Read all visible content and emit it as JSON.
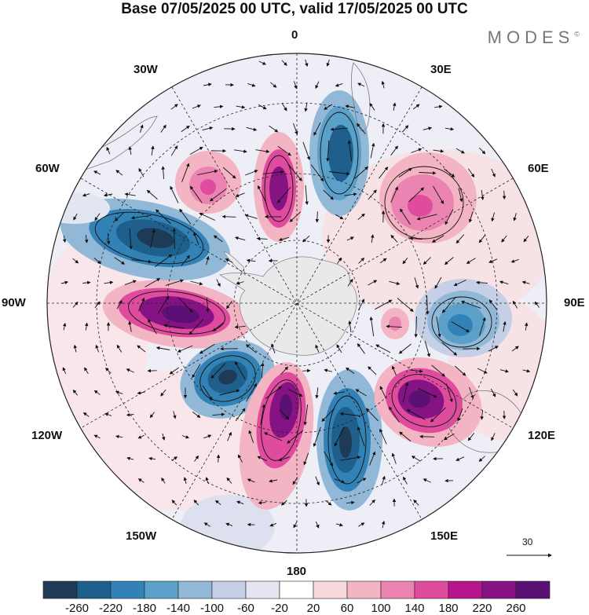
{
  "title": "Base 07/05/2025 00 UTC, valid 17/05/2025 00 UTC",
  "brand": "MODES",
  "brand_mark": "©",
  "projection": "south-polar-stereographic",
  "longitude_labels": {
    "lon_0": "0",
    "lon_30e": "30E",
    "lon_60e": "60E",
    "lon_90e": "90E",
    "lon_120e": "120E",
    "lon_150e": "150E",
    "lon_180": "180",
    "lon_150w": "150W",
    "lon_120w": "120W",
    "lon_90w": "90W",
    "lon_60w": "60W",
    "lon_30w": "30W"
  },
  "vector_reference": {
    "label": "30"
  },
  "colorbar": {
    "ticks": [
      "-260",
      "-220",
      "-180",
      "-140",
      "-100",
      "-60",
      "-20",
      "20",
      "60",
      "100",
      "140",
      "180",
      "220",
      "260"
    ],
    "colors": [
      "#1f3a56",
      "#1e5f8c",
      "#3382b5",
      "#5ba0c9",
      "#91b8d6",
      "#c5cfe5",
      "#e6e6f2",
      "#ffffff",
      "#f7d9dd",
      "#f3b5c4",
      "#ec84b2",
      "#df4c9e",
      "#b5168c",
      "#851383",
      "#5a1074"
    ]
  },
  "anomaly_centers": [
    {
      "name": "neg-south-atlantic",
      "sign": "negative",
      "level": -180
    },
    {
      "name": "pos-southern-ocean-60w",
      "sign": "positive",
      "level": 180
    },
    {
      "name": "pos-weddell-30w",
      "sign": "positive",
      "level": 140
    },
    {
      "name": "neg-amundsen-70w",
      "sign": "negative",
      "level": -260
    },
    {
      "name": "pos-bellingshausen-90w",
      "sign": "positive",
      "level": 260
    },
    {
      "name": "neg-ross-130w",
      "sign": "negative",
      "level": -260
    },
    {
      "name": "pos-pacific-170w",
      "sign": "positive",
      "level": 260
    },
    {
      "name": "neg-pacific-160e",
      "sign": "negative",
      "level": -260
    },
    {
      "name": "pos-australia-130e",
      "sign": "positive",
      "level": 260
    },
    {
      "name": "neg-indian-90e",
      "sign": "negative",
      "level": -180
    },
    {
      "name": "pos-indian-50e",
      "sign": "positive",
      "level": 140
    },
    {
      "name": "pos-small-100e",
      "sign": "positive",
      "level": 60
    }
  ]
}
